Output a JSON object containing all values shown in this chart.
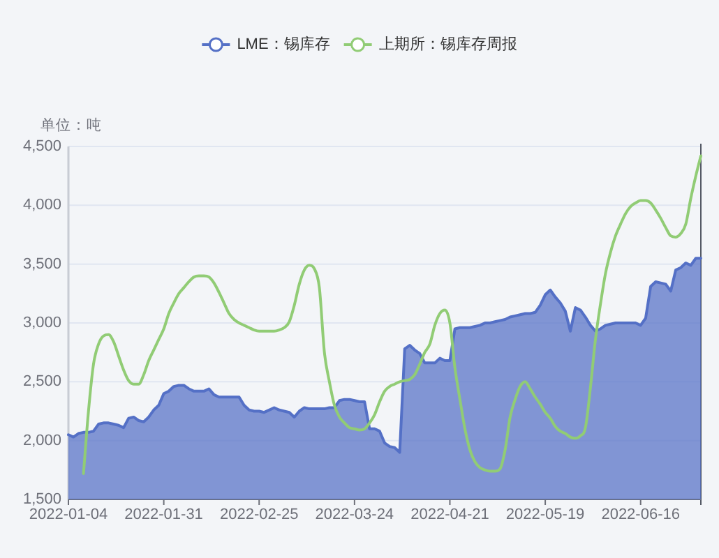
{
  "chart_data": {
    "type": "area",
    "ylabel": "单位：吨",
    "categories": [
      "2022-01-04",
      null,
      null,
      null,
      null,
      null,
      null,
      null,
      null,
      null,
      null,
      null,
      null,
      null,
      null,
      null,
      null,
      null,
      null,
      "2022-01-31",
      null,
      null,
      null,
      null,
      null,
      null,
      null,
      null,
      null,
      null,
      null,
      null,
      null,
      null,
      null,
      null,
      null,
      null,
      "2022-02-25",
      null,
      null,
      null,
      null,
      null,
      null,
      null,
      null,
      null,
      null,
      null,
      null,
      null,
      null,
      null,
      null,
      null,
      null,
      "2022-03-24",
      null,
      null,
      null,
      null,
      null,
      null,
      null,
      null,
      null,
      null,
      null,
      null,
      null,
      null,
      null,
      null,
      null,
      null,
      "2022-04-21",
      null,
      null,
      null,
      null,
      null,
      null,
      null,
      null,
      null,
      null,
      null,
      null,
      null,
      null,
      null,
      null,
      null,
      null,
      "2022-05-19",
      null,
      null,
      null,
      null,
      null,
      null,
      null,
      null,
      null,
      null,
      null,
      null,
      null,
      null,
      null,
      null,
      null,
      null,
      "2022-06-16",
      null,
      null,
      null,
      null,
      null,
      null,
      null,
      null,
      null,
      null,
      null,
      null
    ],
    "series": [
      {
        "name": "LME：锡库存",
        "color": "#5470c6",
        "values": [
          2050,
          2030,
          2060,
          2070,
          2070,
          2080,
          2140,
          2150,
          2150,
          2140,
          2130,
          2110,
          2190,
          2200,
          2170,
          2160,
          2200,
          2260,
          2300,
          2400,
          2420,
          2460,
          2470,
          2470,
          2440,
          2420,
          2420,
          2420,
          2440,
          2390,
          2370,
          2370,
          2370,
          2370,
          2370,
          2300,
          2260,
          2250,
          2250,
          2240,
          2260,
          2280,
          2260,
          2250,
          2240,
          2200,
          2250,
          2280,
          2270,
          2270,
          2270,
          2270,
          2280,
          2280,
          2340,
          2350,
          2350,
          2340,
          2330,
          2330,
          2100,
          2100,
          2080,
          1980,
          1950,
          1940,
          1900,
          2780,
          2810,
          2770,
          2740,
          2660,
          2660,
          2660,
          2700,
          2680,
          2680,
          2950,
          2960,
          2960,
          2960,
          2970,
          2980,
          3000,
          3000,
          3010,
          3020,
          3030,
          3050,
          3060,
          3070,
          3080,
          3080,
          3090,
          3150,
          3240,
          3280,
          3220,
          3170,
          3100,
          2930,
          3130,
          3110,
          3050,
          2980,
          2930,
          2950,
          2980,
          2990,
          3000,
          3000,
          3000,
          3000,
          3000,
          2980,
          3040,
          3310,
          3350,
          3340,
          3330,
          3270,
          3450,
          3470,
          3510,
          3490,
          3550,
          3550
        ]
      },
      {
        "name": "上期所：锡库存周报",
        "type": "line",
        "color": "#91cc75",
        "values": [
          null,
          null,
          null,
          1720,
          2250,
          2650,
          2820,
          2890,
          2900,
          2840,
          2720,
          2600,
          2510,
          2480,
          2480,
          2560,
          2680,
          2770,
          2860,
          2950,
          3080,
          3170,
          3250,
          3300,
          3350,
          3390,
          3400,
          3400,
          3390,
          3340,
          3260,
          3170,
          3080,
          3030,
          3000,
          2980,
          2960,
          2940,
          2930,
          2930,
          2930,
          2930,
          2940,
          2960,
          3010,
          3150,
          3330,
          3450,
          3490,
          3460,
          3300,
          2750,
          2500,
          2300,
          2200,
          2150,
          2110,
          2100,
          2090,
          2100,
          2150,
          2220,
          2330,
          2420,
          2460,
          2480,
          2500,
          2510,
          2520,
          2560,
          2650,
          2750,
          2820,
          2980,
          3080,
          3110,
          3000,
          2620,
          2350,
          2100,
          1920,
          1820,
          1770,
          1750,
          1740,
          1740,
          1760,
          1920,
          2200,
          2350,
          2460,
          2500,
          2440,
          2370,
          2310,
          2240,
          2190,
          2120,
          2080,
          2060,
          2030,
          2020,
          2040,
          2110,
          2450,
          2860,
          3160,
          3420,
          3600,
          3740,
          3840,
          3930,
          3990,
          4020,
          4040,
          4040,
          4020,
          3960,
          3890,
          3810,
          3740,
          3730,
          3760,
          3840,
          4060,
          4250,
          4420
        ]
      }
    ],
    "ylim": [
      1500,
      4500
    ],
    "yticks": [
      {
        "value": 1500,
        "label": "1,500"
      },
      {
        "value": 2000,
        "label": "2,000"
      },
      {
        "value": 2500,
        "label": "2,500"
      },
      {
        "value": 3000,
        "label": "3,000"
      },
      {
        "value": 3500,
        "label": "3,500"
      },
      {
        "value": 4000,
        "label": "4,000"
      },
      {
        "value": 4500,
        "label": "4,500"
      }
    ],
    "grid": "y",
    "legend": "top",
    "marker": "none"
  }
}
